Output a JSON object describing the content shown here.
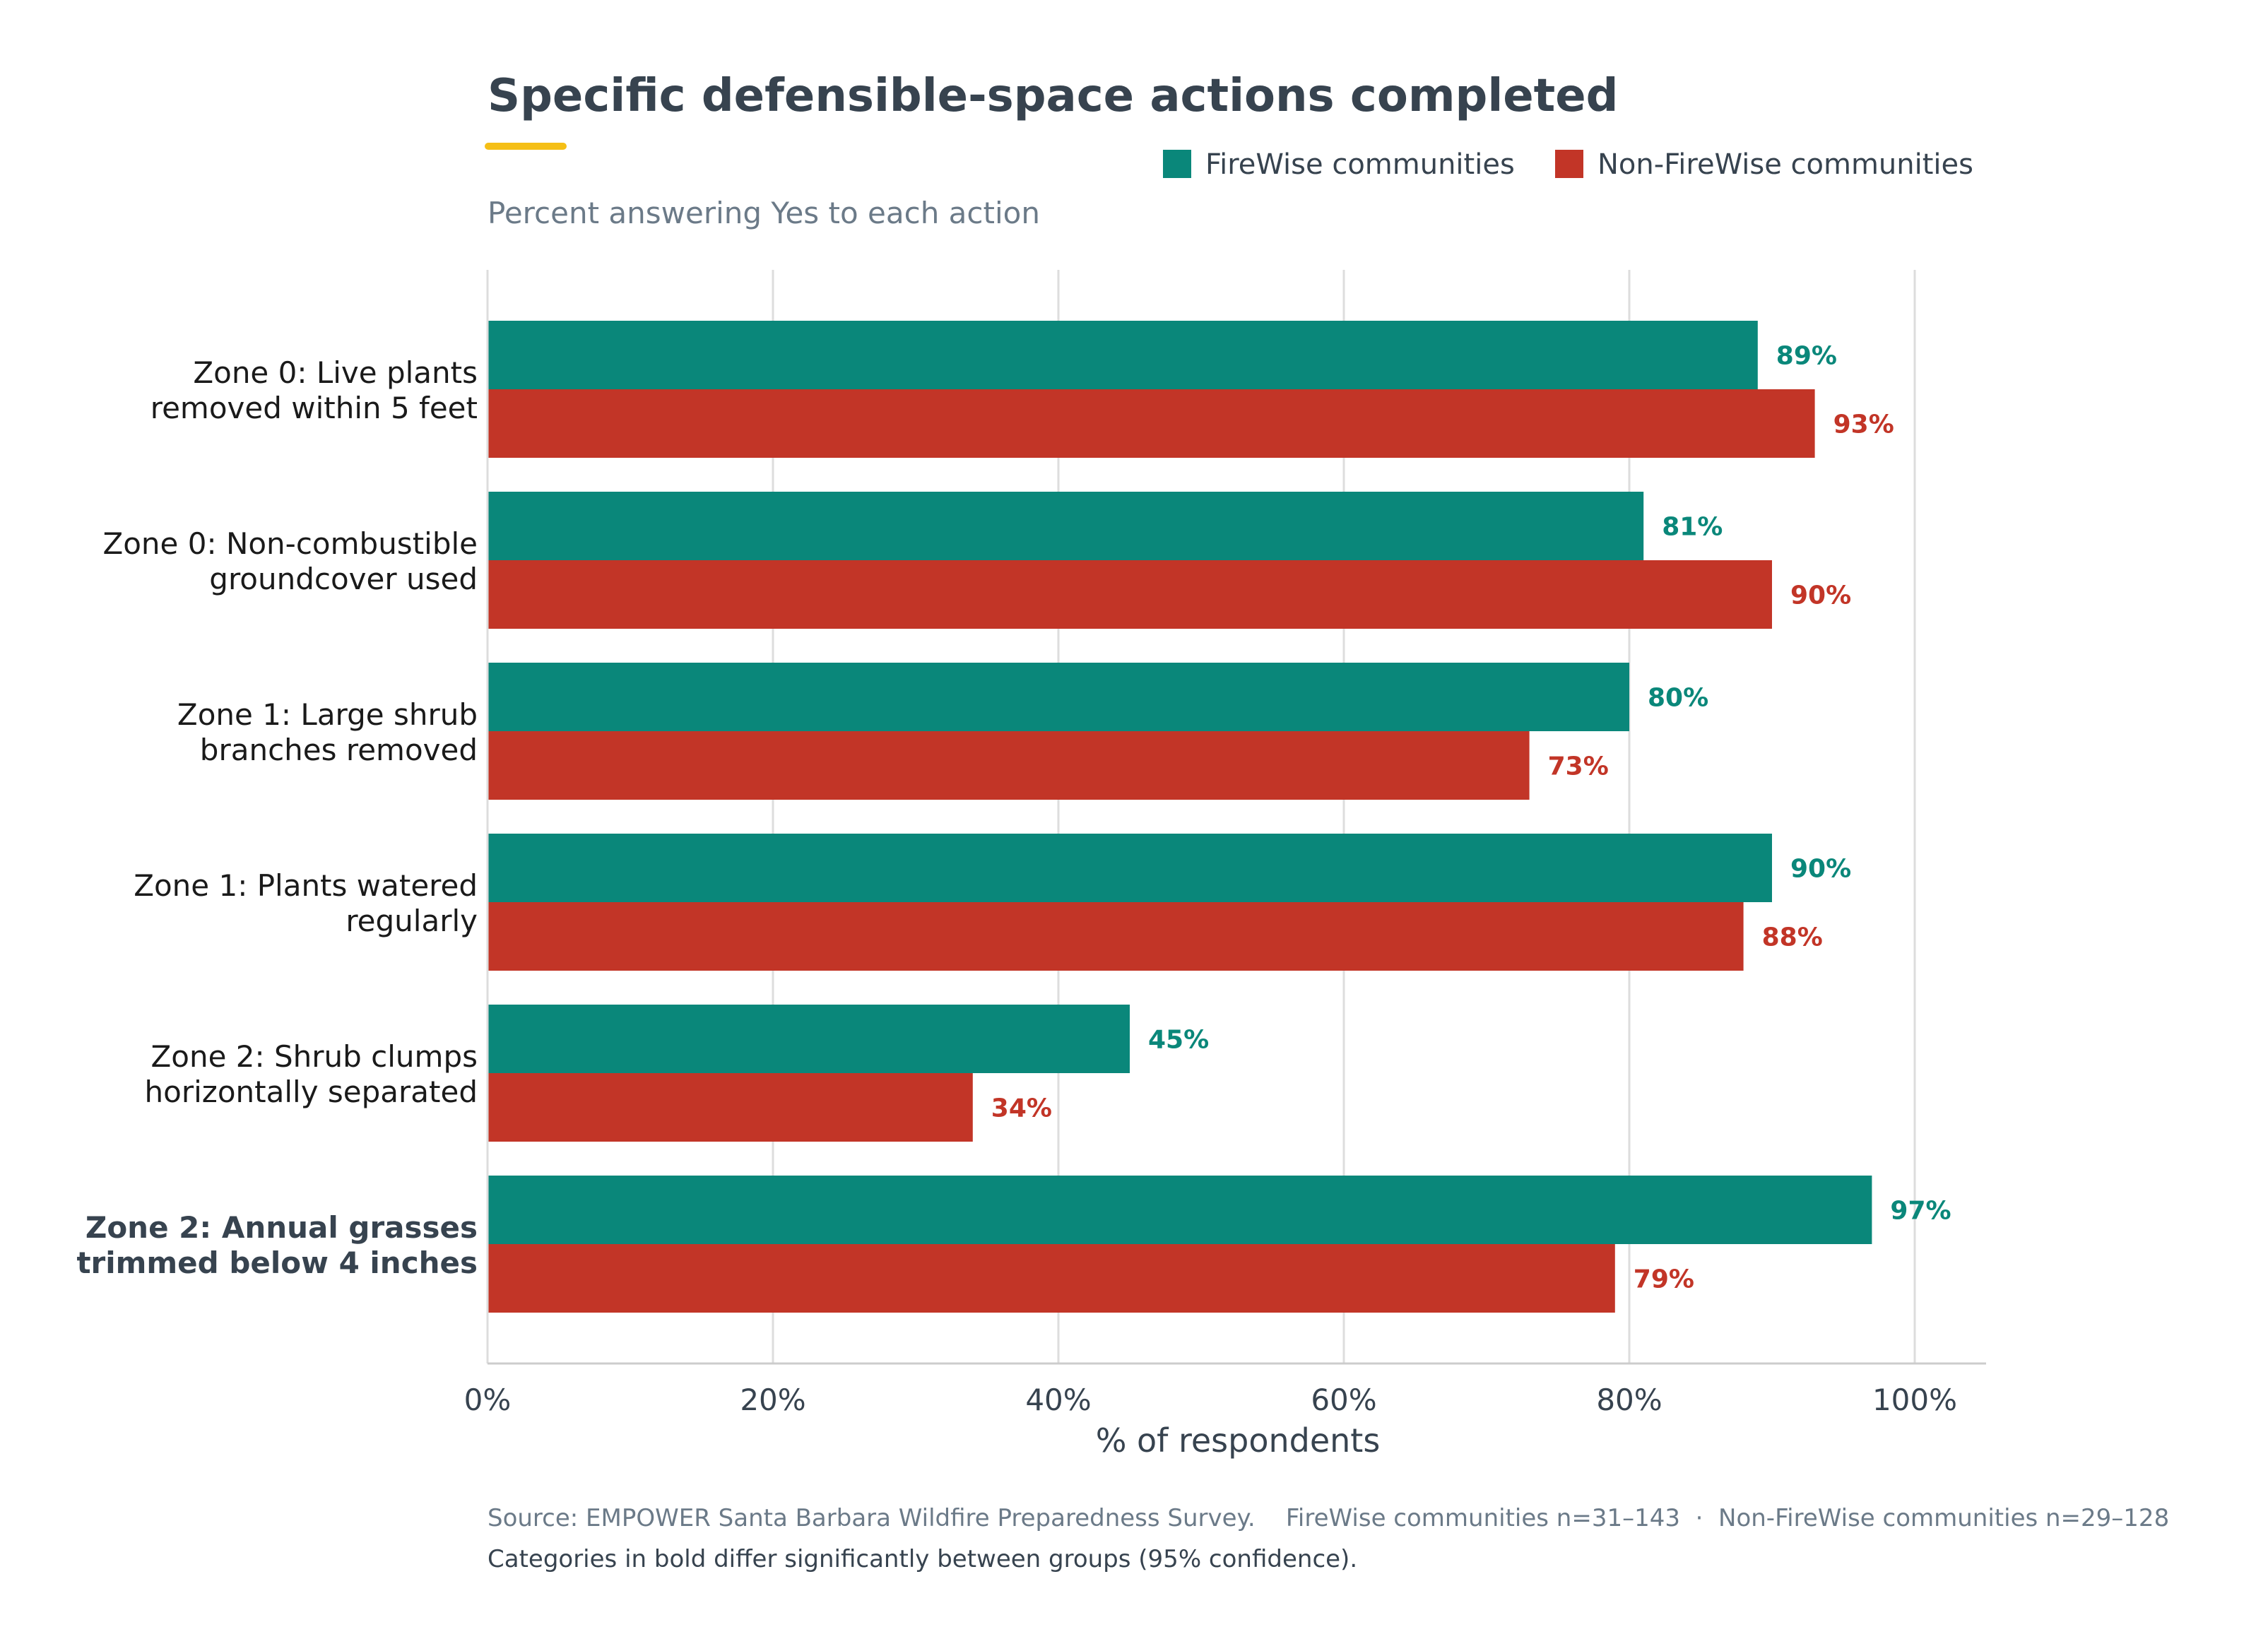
{
  "title": "Specific defensible-space actions completed",
  "subtitle": "Percent answering Yes to each action",
  "colors": {
    "accent": "#f5bf16",
    "firewise": "#0a877a",
    "nonfirewise": "#c23527",
    "text": "#37434f",
    "muted": "#6b7a88",
    "grid": "#dddddd"
  },
  "legend": [
    {
      "label": "FireWise communities",
      "color": "#0a877a"
    },
    {
      "label": "Non-FireWise communities",
      "color": "#c23527"
    }
  ],
  "chart_data": {
    "type": "bar",
    "orientation": "horizontal",
    "categories": [
      {
        "lines": [
          "Zone 0: Live plants",
          "removed within 5 feet"
        ],
        "significant": false
      },
      {
        "lines": [
          "Zone 0: Non-combustible",
          "groundcover used"
        ],
        "significant": false
      },
      {
        "lines": [
          "Zone 1: Large shrub",
          "branches removed"
        ],
        "significant": false
      },
      {
        "lines": [
          "Zone 1: Plants watered",
          "regularly"
        ],
        "significant": false
      },
      {
        "lines": [
          "Zone 2: Shrub clumps",
          "horizontally separated"
        ],
        "significant": false
      },
      {
        "lines": [
          "Zone 2: Annual grasses",
          "trimmed below 4 inches"
        ],
        "significant": true
      }
    ],
    "series": [
      {
        "name": "FireWise communities",
        "color": "#0a877a",
        "values": [
          89,
          81,
          80,
          90,
          45,
          97
        ],
        "labels": [
          "89%",
          "81%",
          "80%",
          "90%",
          "45%",
          "97%"
        ]
      },
      {
        "name": "Non-FireWise communities",
        "color": "#c23527",
        "values": [
          93,
          90,
          73,
          88,
          34,
          79
        ],
        "labels": [
          "93%",
          "90%",
          "73%",
          "88%",
          "34%",
          "79%"
        ]
      }
    ],
    "xlim": [
      0,
      105
    ],
    "xticks": [
      0,
      20,
      40,
      60,
      80,
      100
    ],
    "xtick_labels": [
      "0%",
      "20%",
      "40%",
      "60%",
      "80%",
      "100%"
    ],
    "xlabel": "% of respondents",
    "grid": true,
    "legend_position": "top-right"
  },
  "footer": {
    "source": "Source: EMPOWER Santa Barbara Wildfire Preparedness Survey.    FireWise communities n=31–143  ·  Non-FireWise communities n=29–128",
    "note": "Categories in bold differ significantly between groups (95% confidence)."
  }
}
